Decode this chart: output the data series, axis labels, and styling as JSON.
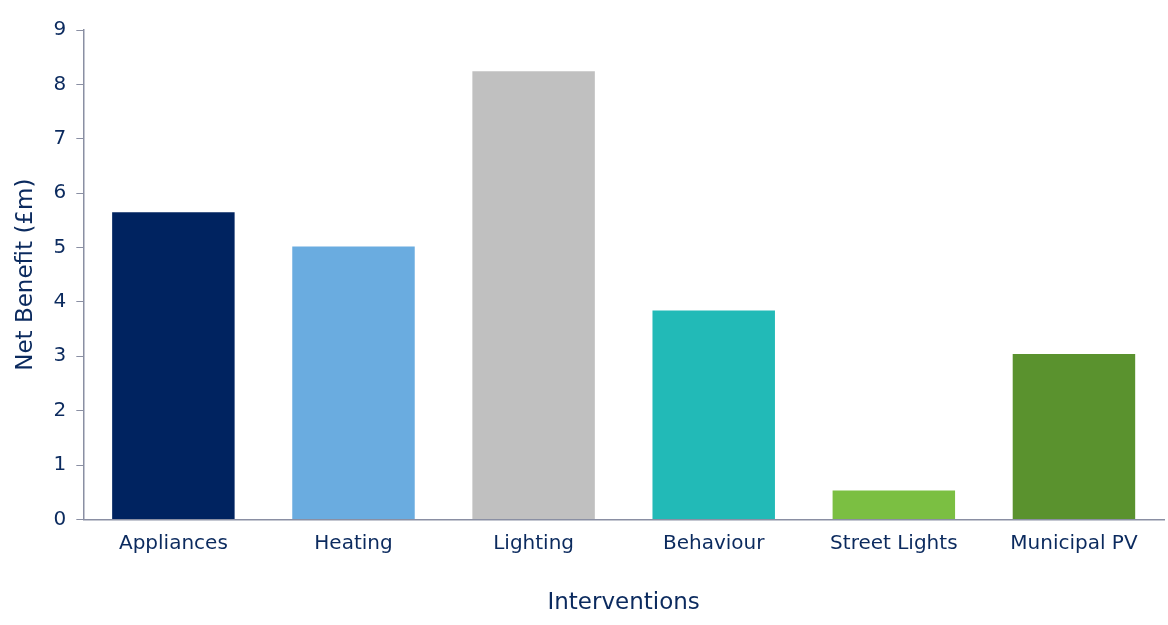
{
  "chart_data": {
    "type": "bar",
    "xlabel": "Interventions",
    "ylabel": "Net Benefit (£m)",
    "categories": [
      "Appliances",
      "Heating",
      "Lighting",
      "Behaviour",
      "Street Lights",
      "Municipal PV"
    ],
    "values": [
      5.65,
      5.02,
      8.24,
      3.84,
      0.53,
      3.04
    ],
    "colors": [
      "#002360",
      "#6aace0",
      "#c0c0c0",
      "#22bab7",
      "#7bbf42",
      "#5a922e"
    ],
    "ylim": [
      0,
      9
    ],
    "yticks": [
      0,
      1,
      2,
      3,
      4,
      5,
      6,
      7,
      8,
      9
    ],
    "grid": false,
    "legend": false
  }
}
